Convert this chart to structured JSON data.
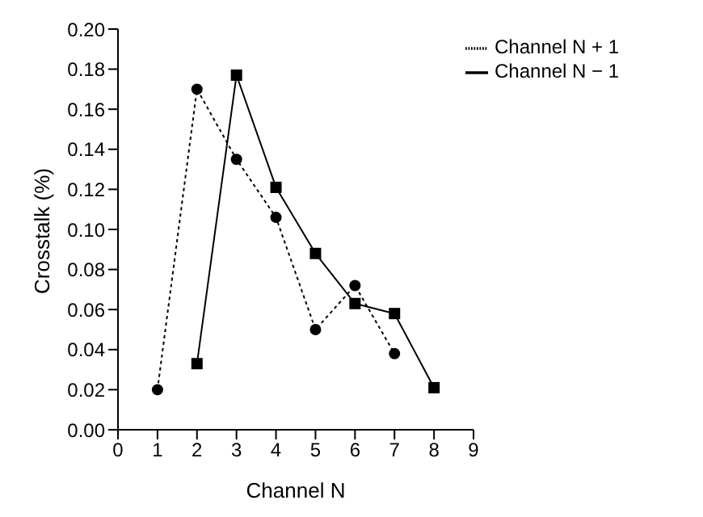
{
  "chart_data": {
    "type": "line",
    "xlabel": "Channel N",
    "ylabel": "Crosstalk (%)",
    "xlim": [
      0,
      9
    ],
    "xticks": [
      0,
      1,
      2,
      3,
      4,
      5,
      6,
      7,
      8,
      9
    ],
    "ylim": [
      0,
      0.2
    ],
    "yticks": [
      {
        "value": 0,
        "label": "0.00"
      },
      {
        "value": 0.02,
        "label": "0.02"
      },
      {
        "value": 0.04,
        "label": "0.04"
      },
      {
        "value": 0.06,
        "label": "0.06"
      },
      {
        "value": 0.08,
        "label": "0.08"
      },
      {
        "value": 0.1,
        "label": "0.10"
      },
      {
        "value": 0.12,
        "label": "0.12"
      },
      {
        "value": 0.14,
        "label": "0.14"
      },
      {
        "value": 0.16,
        "label": "0.16"
      },
      {
        "value": 0.18,
        "label": "0.18"
      },
      {
        "value": 0.2,
        "label": "0.20"
      }
    ],
    "legend": "top right",
    "grid": false,
    "series": [
      {
        "name": "Channel N − 1",
        "color": "#000000",
        "marker": "square",
        "line_style": "solid",
        "x": [
          2,
          3,
          4,
          5,
          6,
          7,
          8
        ],
        "values": [
          0.033,
          0.177,
          0.121,
          0.088,
          0.063,
          0.058,
          0.021
        ]
      },
      {
        "name": "Channel N + 1",
        "color": "#000000",
        "marker": "circle",
        "line_style": "dotted",
        "x": [
          1,
          2,
          3,
          4,
          5,
          6,
          7
        ],
        "values": [
          0.02,
          0.17,
          0.135,
          0.106,
          0.05,
          0.072,
          0.038
        ]
      }
    ]
  }
}
